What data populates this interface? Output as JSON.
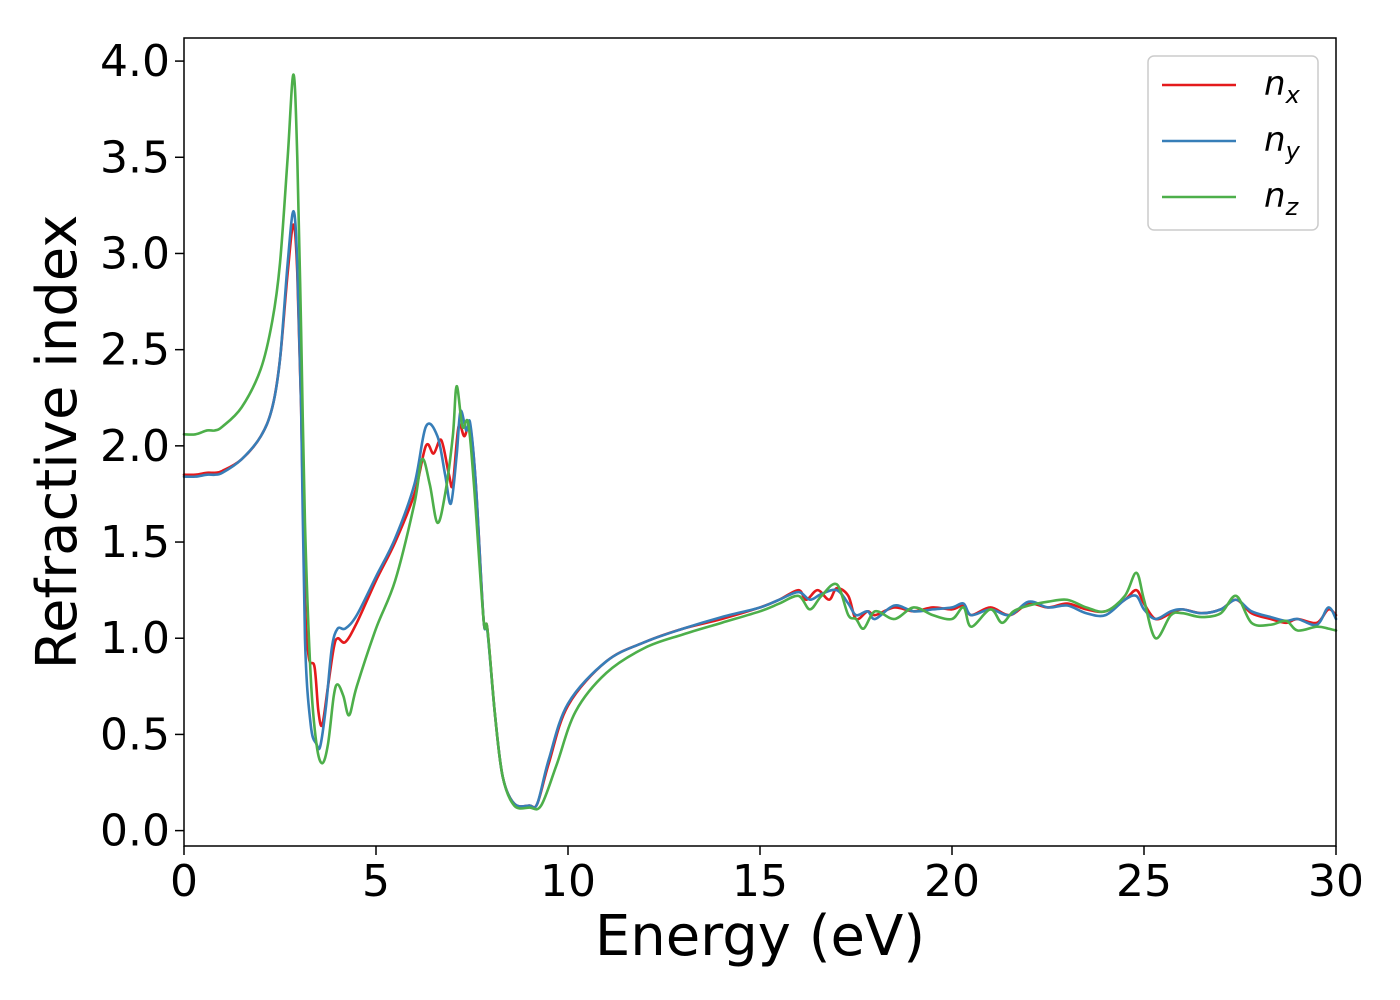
{
  "chart_data": {
    "type": "line",
    "title": "",
    "xlabel": "Energy (eV)",
    "ylabel": "Refractive index",
    "xlim": [
      0,
      30
    ],
    "ylim": [
      -0.08,
      4.12
    ],
    "xticks": [
      0,
      5,
      10,
      15,
      20,
      25,
      30
    ],
    "xtick_labels": [
      "0",
      "5",
      "10",
      "15",
      "20",
      "25",
      "30"
    ],
    "yticks": [
      0.0,
      0.5,
      1.0,
      1.5,
      2.0,
      2.5,
      3.0,
      3.5,
      4.0
    ],
    "ytick_labels": [
      "0.0",
      "0.5",
      "1.0",
      "1.5",
      "2.0",
      "2.5",
      "3.0",
      "3.5",
      "4.0"
    ],
    "grid": false,
    "legend_position": "top-right",
    "series": [
      {
        "name": "n",
        "subscript": "x",
        "color": "#e41a1c",
        "points": [
          [
            0,
            1.85
          ],
          [
            0.3,
            1.85
          ],
          [
            0.6,
            1.86
          ],
          [
            0.8,
            1.86
          ],
          [
            1.0,
            1.87
          ],
          [
            1.5,
            1.93
          ],
          [
            2.0,
            2.05
          ],
          [
            2.3,
            2.2
          ],
          [
            2.5,
            2.45
          ],
          [
            2.7,
            2.9
          ],
          [
            2.85,
            3.15
          ],
          [
            2.95,
            2.9
          ],
          [
            3.05,
            2.2
          ],
          [
            3.15,
            1.2
          ],
          [
            3.25,
            0.9
          ],
          [
            3.4,
            0.85
          ],
          [
            3.5,
            0.62
          ],
          [
            3.6,
            0.55
          ],
          [
            3.75,
            0.75
          ],
          [
            3.9,
            0.95
          ],
          [
            4.0,
            1.0
          ],
          [
            4.2,
            0.98
          ],
          [
            4.5,
            1.08
          ],
          [
            5.0,
            1.3
          ],
          [
            5.5,
            1.5
          ],
          [
            6.0,
            1.75
          ],
          [
            6.3,
            2.0
          ],
          [
            6.5,
            1.96
          ],
          [
            6.7,
            2.03
          ],
          [
            6.9,
            1.85
          ],
          [
            7.0,
            1.8
          ],
          [
            7.15,
            2.1
          ],
          [
            7.3,
            2.05
          ],
          [
            7.45,
            2.1
          ],
          [
            7.6,
            1.8
          ],
          [
            7.8,
            1.1
          ],
          [
            7.9,
            1.05
          ],
          [
            8.1,
            0.6
          ],
          [
            8.3,
            0.28
          ],
          [
            8.6,
            0.14
          ],
          [
            9.0,
            0.13
          ],
          [
            9.2,
            0.14
          ],
          [
            9.5,
            0.35
          ],
          [
            10.0,
            0.65
          ],
          [
            11.0,
            0.88
          ],
          [
            12.0,
            0.98
          ],
          [
            13.0,
            1.05
          ],
          [
            14.0,
            1.1
          ],
          [
            15.0,
            1.16
          ],
          [
            15.5,
            1.2
          ],
          [
            16.0,
            1.25
          ],
          [
            16.2,
            1.2
          ],
          [
            16.5,
            1.25
          ],
          [
            16.8,
            1.2
          ],
          [
            17.0,
            1.26
          ],
          [
            17.3,
            1.22
          ],
          [
            17.5,
            1.1
          ],
          [
            17.8,
            1.14
          ],
          [
            18.0,
            1.12
          ],
          [
            18.5,
            1.16
          ],
          [
            19.0,
            1.14
          ],
          [
            19.5,
            1.16
          ],
          [
            20.0,
            1.15
          ],
          [
            20.3,
            1.17
          ],
          [
            20.5,
            1.12
          ],
          [
            21.0,
            1.16
          ],
          [
            21.5,
            1.12
          ],
          [
            22.0,
            1.18
          ],
          [
            22.5,
            1.16
          ],
          [
            23.0,
            1.18
          ],
          [
            23.5,
            1.15
          ],
          [
            24.0,
            1.14
          ],
          [
            24.5,
            1.2
          ],
          [
            24.8,
            1.25
          ],
          [
            25.0,
            1.18
          ],
          [
            25.3,
            1.1
          ],
          [
            25.7,
            1.13
          ],
          [
            26.0,
            1.15
          ],
          [
            26.5,
            1.13
          ],
          [
            27.0,
            1.15
          ],
          [
            27.4,
            1.2
          ],
          [
            27.8,
            1.13
          ],
          [
            28.3,
            1.1
          ],
          [
            28.7,
            1.08
          ],
          [
            29.0,
            1.1
          ],
          [
            29.5,
            1.08
          ],
          [
            29.8,
            1.15
          ],
          [
            30.0,
            1.12
          ]
        ]
      },
      {
        "name": "n",
        "subscript": "y",
        "color": "#377eb8",
        "points": [
          [
            0,
            1.84
          ],
          [
            0.3,
            1.84
          ],
          [
            0.6,
            1.85
          ],
          [
            0.8,
            1.85
          ],
          [
            1.0,
            1.86
          ],
          [
            1.5,
            1.93
          ],
          [
            2.0,
            2.05
          ],
          [
            2.3,
            2.2
          ],
          [
            2.5,
            2.45
          ],
          [
            2.7,
            2.95
          ],
          [
            2.85,
            3.22
          ],
          [
            2.95,
            2.95
          ],
          [
            3.05,
            2.2
          ],
          [
            3.15,
            1.0
          ],
          [
            3.3,
            0.55
          ],
          [
            3.45,
            0.45
          ],
          [
            3.55,
            0.44
          ],
          [
            3.7,
            0.65
          ],
          [
            3.85,
            0.95
          ],
          [
            4.0,
            1.05
          ],
          [
            4.2,
            1.05
          ],
          [
            4.5,
            1.12
          ],
          [
            5.0,
            1.32
          ],
          [
            5.5,
            1.52
          ],
          [
            6.0,
            1.8
          ],
          [
            6.3,
            2.1
          ],
          [
            6.6,
            2.05
          ],
          [
            6.8,
            1.85
          ],
          [
            6.95,
            1.7
          ],
          [
            7.1,
            1.95
          ],
          [
            7.2,
            2.18
          ],
          [
            7.35,
            2.08
          ],
          [
            7.45,
            2.12
          ],
          [
            7.6,
            1.8
          ],
          [
            7.8,
            1.1
          ],
          [
            7.9,
            1.04
          ],
          [
            8.1,
            0.6
          ],
          [
            8.3,
            0.28
          ],
          [
            8.6,
            0.14
          ],
          [
            9.0,
            0.13
          ],
          [
            9.2,
            0.14
          ],
          [
            9.5,
            0.37
          ],
          [
            10.0,
            0.66
          ],
          [
            11.0,
            0.88
          ],
          [
            12.0,
            0.98
          ],
          [
            13.0,
            1.05
          ],
          [
            14.0,
            1.11
          ],
          [
            15.0,
            1.16
          ],
          [
            15.5,
            1.2
          ],
          [
            16.0,
            1.24
          ],
          [
            16.3,
            1.2
          ],
          [
            16.6,
            1.23
          ],
          [
            17.0,
            1.25
          ],
          [
            17.3,
            1.18
          ],
          [
            17.5,
            1.12
          ],
          [
            17.8,
            1.14
          ],
          [
            18.0,
            1.1
          ],
          [
            18.5,
            1.17
          ],
          [
            19.0,
            1.14
          ],
          [
            19.5,
            1.15
          ],
          [
            20.0,
            1.16
          ],
          [
            20.3,
            1.18
          ],
          [
            20.5,
            1.12
          ],
          [
            21.0,
            1.15
          ],
          [
            21.5,
            1.12
          ],
          [
            22.0,
            1.19
          ],
          [
            22.5,
            1.16
          ],
          [
            23.0,
            1.17
          ],
          [
            23.5,
            1.13
          ],
          [
            24.0,
            1.12
          ],
          [
            24.5,
            1.2
          ],
          [
            24.8,
            1.22
          ],
          [
            25.0,
            1.15
          ],
          [
            25.3,
            1.1
          ],
          [
            25.7,
            1.14
          ],
          [
            26.0,
            1.15
          ],
          [
            26.5,
            1.13
          ],
          [
            27.0,
            1.15
          ],
          [
            27.4,
            1.2
          ],
          [
            27.8,
            1.14
          ],
          [
            28.3,
            1.11
          ],
          [
            28.7,
            1.09
          ],
          [
            29.0,
            1.1
          ],
          [
            29.5,
            1.07
          ],
          [
            29.8,
            1.16
          ],
          [
            30.0,
            1.1
          ]
        ]
      },
      {
        "name": "n",
        "subscript": "z",
        "color": "#4daf4a",
        "points": [
          [
            0,
            2.06
          ],
          [
            0.3,
            2.06
          ],
          [
            0.6,
            2.08
          ],
          [
            0.8,
            2.08
          ],
          [
            1.0,
            2.1
          ],
          [
            1.5,
            2.2
          ],
          [
            2.0,
            2.4
          ],
          [
            2.3,
            2.65
          ],
          [
            2.5,
            2.95
          ],
          [
            2.7,
            3.5
          ],
          [
            2.85,
            3.93
          ],
          [
            2.95,
            3.5
          ],
          [
            3.05,
            2.6
          ],
          [
            3.15,
            1.6
          ],
          [
            3.3,
            0.8
          ],
          [
            3.45,
            0.45
          ],
          [
            3.6,
            0.35
          ],
          [
            3.75,
            0.45
          ],
          [
            3.9,
            0.7
          ],
          [
            4.0,
            0.76
          ],
          [
            4.15,
            0.7
          ],
          [
            4.3,
            0.6
          ],
          [
            4.5,
            0.75
          ],
          [
            5.0,
            1.05
          ],
          [
            5.5,
            1.3
          ],
          [
            6.0,
            1.7
          ],
          [
            6.2,
            1.93
          ],
          [
            6.4,
            1.8
          ],
          [
            6.6,
            1.6
          ],
          [
            6.8,
            1.75
          ],
          [
            7.0,
            2.05
          ],
          [
            7.1,
            2.31
          ],
          [
            7.25,
            2.1
          ],
          [
            7.4,
            2.12
          ],
          [
            7.55,
            1.8
          ],
          [
            7.8,
            1.1
          ],
          [
            7.9,
            1.05
          ],
          [
            8.1,
            0.6
          ],
          [
            8.3,
            0.28
          ],
          [
            8.6,
            0.13
          ],
          [
            9.0,
            0.12
          ],
          [
            9.3,
            0.13
          ],
          [
            9.7,
            0.34
          ],
          [
            10.2,
            0.62
          ],
          [
            11.0,
            0.82
          ],
          [
            12.0,
            0.95
          ],
          [
            13.0,
            1.02
          ],
          [
            14.0,
            1.08
          ],
          [
            15.0,
            1.14
          ],
          [
            15.5,
            1.18
          ],
          [
            16.0,
            1.22
          ],
          [
            16.3,
            1.15
          ],
          [
            16.6,
            1.22
          ],
          [
            17.0,
            1.28
          ],
          [
            17.3,
            1.12
          ],
          [
            17.5,
            1.1
          ],
          [
            17.7,
            1.05
          ],
          [
            18.0,
            1.14
          ],
          [
            18.5,
            1.1
          ],
          [
            19.0,
            1.16
          ],
          [
            19.5,
            1.12
          ],
          [
            20.0,
            1.1
          ],
          [
            20.3,
            1.16
          ],
          [
            20.5,
            1.06
          ],
          [
            21.0,
            1.15
          ],
          [
            21.3,
            1.08
          ],
          [
            21.6,
            1.14
          ],
          [
            22.0,
            1.17
          ],
          [
            22.5,
            1.19
          ],
          [
            23.0,
            1.2
          ],
          [
            23.5,
            1.16
          ],
          [
            24.0,
            1.14
          ],
          [
            24.5,
            1.22
          ],
          [
            24.8,
            1.34
          ],
          [
            25.0,
            1.2
          ],
          [
            25.3,
            1.0
          ],
          [
            25.7,
            1.12
          ],
          [
            26.0,
            1.13
          ],
          [
            26.5,
            1.11
          ],
          [
            27.0,
            1.13
          ],
          [
            27.4,
            1.22
          ],
          [
            27.8,
            1.08
          ],
          [
            28.3,
            1.07
          ],
          [
            28.7,
            1.09
          ],
          [
            29.0,
            1.04
          ],
          [
            29.5,
            1.06
          ],
          [
            29.8,
            1.05
          ],
          [
            30.0,
            1.04
          ]
        ]
      }
    ]
  }
}
